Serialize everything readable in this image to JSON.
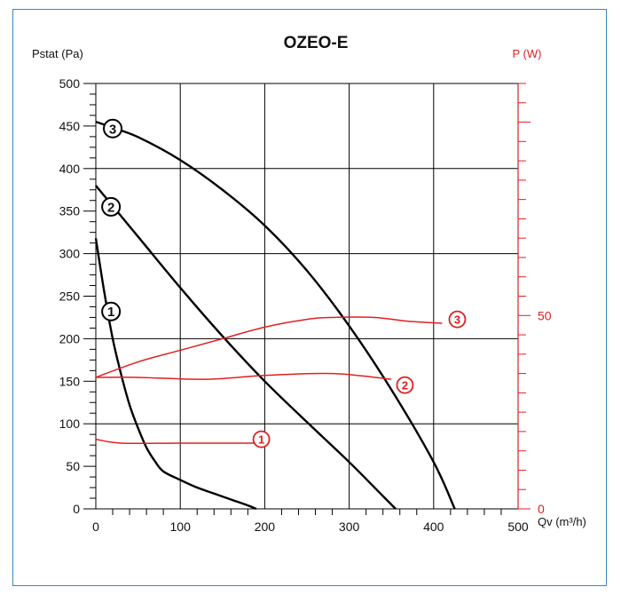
{
  "chart_data": {
    "type": "line",
    "title": "OZEO-E",
    "xlabel": "Qv (m³/h)",
    "ylabel": "Pstat (Pa)",
    "y2label": "P (W)",
    "xlim": [
      0,
      500
    ],
    "ylim": [
      0,
      500
    ],
    "y2lim": [
      0,
      110
    ],
    "x_ticks": [
      "0",
      "100",
      "200",
      "300",
      "400",
      "500"
    ],
    "y_ticks": [
      "0",
      "50",
      "100",
      "150",
      "200",
      "250",
      "300",
      "350",
      "400",
      "450",
      "500"
    ],
    "y2_ticks": [
      "0",
      "50"
    ],
    "grid": true,
    "colors": {
      "pressure": "#000000",
      "power": "#e02020",
      "frame": "#3a87c0"
    },
    "pressure_series": [
      {
        "name": "1",
        "label_at": [
          18,
          232
        ],
        "x": [
          0,
          10,
          20,
          30,
          40,
          50,
          60,
          70,
          80,
          100,
          120,
          140,
          160,
          180,
          190
        ],
        "y": [
          318,
          255,
          200,
          158,
          122,
          95,
          72,
          56,
          44,
          34,
          25,
          18,
          11,
          4,
          0
        ]
      },
      {
        "name": "2",
        "label_at": [
          18,
          355
        ],
        "x": [
          0,
          50,
          100,
          150,
          200,
          250,
          300,
          340,
          355
        ],
        "y": [
          380,
          320,
          260,
          203,
          150,
          102,
          55,
          15,
          0
        ]
      },
      {
        "name": "3",
        "label_at": [
          20,
          447
        ],
        "x": [
          0,
          20,
          50,
          100,
          150,
          200,
          250,
          300,
          350,
          400,
          425
        ],
        "y": [
          455,
          448,
          437,
          410,
          375,
          333,
          280,
          215,
          140,
          55,
          0
        ]
      }
    ],
    "power_series": [
      {
        "name": "1",
        "label_at": [
          196,
          18
        ],
        "x": [
          0,
          30,
          100,
          190
        ],
        "y": [
          18,
          17,
          17,
          17
        ]
      },
      {
        "name": "2",
        "label_at": [
          366,
          32
        ],
        "x": [
          0,
          50,
          130,
          200,
          280,
          350
        ],
        "y": [
          34,
          34,
          33.5,
          34.5,
          35,
          33.5
        ]
      },
      {
        "name": "3",
        "label_at": [
          428,
          49
        ],
        "x": [
          0,
          50,
          100,
          150,
          200,
          250,
          280,
          330,
          370,
          410
        ],
        "y": [
          34,
          38,
          41,
          44,
          47,
          49,
          49.5,
          49.5,
          48.5,
          48
        ]
      }
    ]
  }
}
